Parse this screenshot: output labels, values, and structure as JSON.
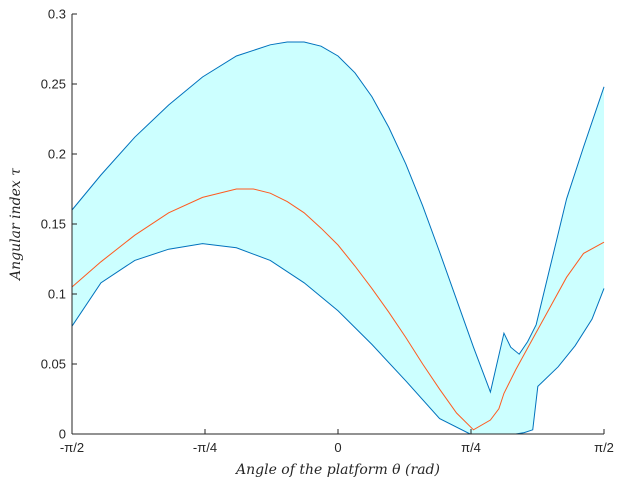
{
  "chart_data": {
    "type": "area",
    "title": "",
    "xlabel": "Angle of the platform θ (rad)",
    "ylabel": "Angular index τ",
    "xlim": [
      -1.5708,
      1.5708
    ],
    "ylim": [
      0,
      0.3
    ],
    "x_ticks": [
      {
        "value": -1.5708,
        "label": "-π/2"
      },
      {
        "value": -0.7854,
        "label": "-π/4"
      },
      {
        "value": 0,
        "label": "0"
      },
      {
        "value": 0.7854,
        "label": "π/4"
      },
      {
        "value": 1.5708,
        "label": "π/2"
      }
    ],
    "y_ticks": [
      {
        "value": 0,
        "label": "0"
      },
      {
        "value": 0.05,
        "label": "0.05"
      },
      {
        "value": 0.1,
        "label": "0.1"
      },
      {
        "value": 0.15,
        "label": "0.15"
      },
      {
        "value": 0.2,
        "label": "0.2"
      },
      {
        "value": 0.25,
        "label": "0.25"
      },
      {
        "value": 0.3,
        "label": "0.3"
      }
    ],
    "grid": false,
    "band_color": "#ccffff",
    "bound_color": "#0072bd",
    "mean_color": "#ff5a1f",
    "series": [
      {
        "role": "upper",
        "x": [
          -1.5708,
          -1.4,
          -1.2,
          -1.0,
          -0.8,
          -0.6,
          -0.4,
          -0.3,
          -0.2,
          -0.1,
          0.0,
          0.1,
          0.2,
          0.3,
          0.4,
          0.5,
          0.6,
          0.7,
          0.8,
          0.9,
          0.98,
          1.02,
          1.07,
          1.12,
          1.17,
          1.25,
          1.35,
          1.45,
          1.5708
        ],
        "y": [
          0.16,
          0.185,
          0.212,
          0.235,
          0.255,
          0.27,
          0.278,
          0.28,
          0.28,
          0.277,
          0.27,
          0.258,
          0.241,
          0.219,
          0.193,
          0.163,
          0.13,
          0.096,
          0.062,
          0.03,
          0.072,
          0.062,
          0.057,
          0.066,
          0.078,
          0.118,
          0.168,
          0.205,
          0.248
        ]
      },
      {
        "role": "mean",
        "x": [
          -1.5708,
          -1.4,
          -1.2,
          -1.0,
          -0.8,
          -0.6,
          -0.5,
          -0.4,
          -0.3,
          -0.2,
          -0.1,
          0.0,
          0.1,
          0.2,
          0.3,
          0.4,
          0.5,
          0.6,
          0.7,
          0.8,
          0.9,
          0.95,
          0.98,
          1.05,
          1.15,
          1.25,
          1.35,
          1.45,
          1.5708
        ],
        "y": [
          0.105,
          0.123,
          0.142,
          0.158,
          0.169,
          0.175,
          0.175,
          0.172,
          0.166,
          0.158,
          0.147,
          0.135,
          0.12,
          0.104,
          0.087,
          0.069,
          0.05,
          0.032,
          0.015,
          0.003,
          0.01,
          0.018,
          0.029,
          0.046,
          0.068,
          0.09,
          0.112,
          0.129,
          0.137
        ]
      },
      {
        "role": "lower",
        "x": [
          -1.5708,
          -1.4,
          -1.2,
          -1.0,
          -0.8,
          -0.6,
          -0.4,
          -0.2,
          0.0,
          0.2,
          0.4,
          0.6,
          0.78,
          0.85,
          0.9,
          0.95,
          1.0,
          1.05,
          1.1,
          1.15,
          1.18,
          1.3,
          1.4,
          1.5,
          1.5708
        ],
        "y": [
          0.077,
          0.108,
          0.124,
          0.132,
          0.136,
          0.133,
          0.124,
          0.108,
          0.088,
          0.064,
          0.038,
          0.011,
          0.0,
          0.0,
          0.0,
          0.0,
          0.0,
          0.0,
          0.001,
          0.003,
          0.034,
          0.048,
          0.063,
          0.082,
          0.104
        ]
      }
    ]
  }
}
